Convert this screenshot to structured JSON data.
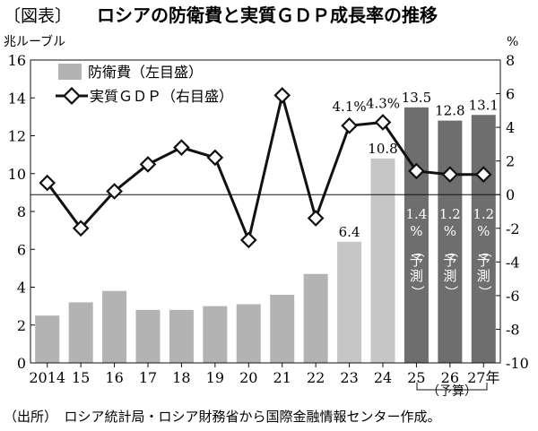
{
  "chart_data": {
    "type": "bar",
    "title_bracket": "〔図表〕",
    "title": "ロシアの防衛費と実質ＧＤＰ成長率の推移",
    "left_unit": "兆ルーブル",
    "right_unit": "%",
    "categories": [
      "2014",
      "15",
      "16",
      "17",
      "18",
      "19",
      "20",
      "21",
      "22",
      "23",
      "24",
      "25",
      "26",
      "27年"
    ],
    "ylim_left": [
      0,
      16
    ],
    "yticks_left": [
      0,
      2,
      4,
      6,
      8,
      10,
      12,
      14,
      16
    ],
    "ylim_right": [
      -10,
      8
    ],
    "yticks_right": [
      -10,
      -8,
      -6,
      -4,
      -2,
      0,
      2,
      4,
      6,
      8
    ],
    "legend": {
      "bar": "防衛費（左目盛）",
      "line": "実質ＧＤＰ（右目盛）"
    },
    "series": [
      {
        "name": "防衛費（左目盛）",
        "axis": "left",
        "values": [
          2.5,
          3.2,
          3.8,
          2.8,
          2.8,
          3.0,
          3.1,
          3.6,
          4.7,
          6.4,
          10.8,
          13.5,
          12.8,
          13.1
        ],
        "value_labels": [
          "",
          "",
          "",
          "",
          "",
          "",
          "",
          "",
          "",
          "6.4",
          "10.8",
          "13.5",
          "12.8",
          "13.1"
        ],
        "forecast_from": 11,
        "colors": {
          "normal": "#b3b3b3",
          "recent": "#c6c6c6",
          "forecast": "#6e6e6e"
        }
      },
      {
        "name": "実質ＧＤＰ（右目盛）",
        "axis": "right",
        "values": [
          0.7,
          -2.0,
          0.2,
          1.8,
          2.8,
          2.2,
          -2.7,
          5.9,
          -1.4,
          4.1,
          4.3,
          1.4,
          1.2,
          1.2
        ],
        "value_labels": [
          "",
          "",
          "",
          "",
          "",
          "",
          "",
          "",
          "",
          "4.1%",
          "4.3%",
          "",
          "",
          ""
        ]
      }
    ],
    "forecast_labels": [
      {
        "value": "1.4",
        "unit": "%",
        "note": "（予測）"
      },
      {
        "value": "1.2",
        "unit": "%",
        "note": "（予測）"
      },
      {
        "value": "1.2",
        "unit": "%",
        "note": "（予測）"
      }
    ],
    "budget_label": "（予算）"
  },
  "source": "（出所）　ロシア統計局・ロシア財務省から国際金融情報センター作成。"
}
